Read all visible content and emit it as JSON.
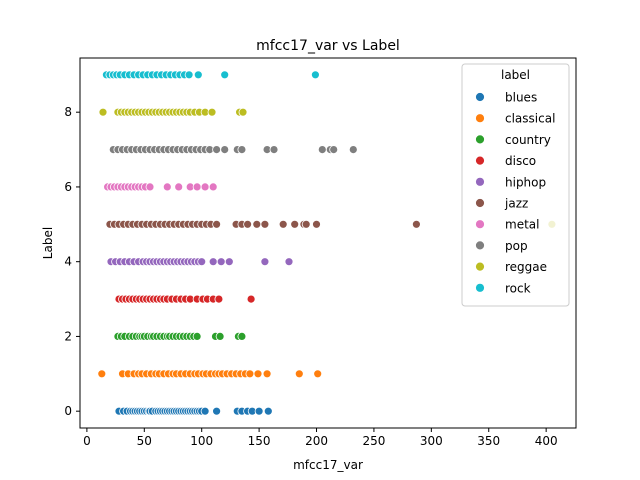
{
  "chart_data": {
    "type": "scatter",
    "title": "mfcc17_var vs Label",
    "xlabel": "mfcc17_var",
    "ylabel": "Label",
    "xlim": [
      -6,
      426
    ],
    "ylim": [
      -0.45,
      9.45
    ],
    "xticks": [
      0,
      50,
      100,
      150,
      200,
      250,
      300,
      350,
      400
    ],
    "yticks": [
      0,
      2,
      4,
      6,
      8
    ],
    "grid": false,
    "legend": {
      "title": "label",
      "position": "top-right"
    },
    "series": [
      {
        "name": "blues",
        "color": "#1f77b4",
        "y": 0,
        "x": [
          28,
          32,
          35,
          38,
          40,
          42,
          44,
          46,
          48,
          50,
          52,
          54,
          55,
          57,
          60,
          62,
          64,
          66,
          68,
          70,
          72,
          74,
          76,
          78,
          80,
          82,
          84,
          86,
          88,
          90,
          92,
          94,
          96,
          98,
          100,
          103,
          113,
          131,
          135,
          140,
          144,
          150,
          158
        ]
      },
      {
        "name": "classical",
        "color": "#ff7f0e",
        "y": 1,
        "x": [
          13,
          31,
          36,
          41,
          45,
          48,
          52,
          56,
          60,
          63,
          67,
          71,
          75,
          78,
          82,
          86,
          90,
          94,
          97,
          101,
          104,
          108,
          112,
          115,
          118,
          122,
          126,
          130,
          134,
          138,
          142,
          149,
          157,
          185,
          201
        ]
      },
      {
        "name": "country",
        "color": "#2ca02c",
        "y": 2,
        "x": [
          27,
          30,
          33,
          37,
          40,
          43,
          46,
          48,
          50,
          53,
          56,
          58,
          61,
          64,
          67,
          70,
          72,
          75,
          78,
          81,
          84,
          87,
          90,
          93,
          96,
          112,
          116,
          132,
          135
        ]
      },
      {
        "name": "disco",
        "color": "#d62728",
        "y": 3,
        "x": [
          28,
          31,
          34,
          37,
          40,
          43,
          46,
          49,
          52,
          55,
          58,
          61,
          64,
          67,
          70,
          74,
          78,
          82,
          86,
          90,
          96,
          101,
          105,
          110,
          115,
          143
        ]
      },
      {
        "name": "hiphop",
        "color": "#9467bd",
        "y": 4,
        "x": [
          21,
          25,
          29,
          33,
          37,
          41,
          45,
          49,
          52,
          55,
          58,
          61,
          64,
          67,
          70,
          73,
          76,
          79,
          82,
          85,
          88,
          91,
          94,
          97,
          100,
          110,
          117,
          124,
          155,
          176
        ]
      },
      {
        "name": "jazz",
        "color": "#8c564b",
        "y": 5,
        "x": [
          20,
          24,
          28,
          32,
          36,
          40,
          44,
          48,
          52,
          56,
          60,
          64,
          68,
          72,
          76,
          80,
          84,
          88,
          92,
          96,
          100,
          104,
          108,
          113,
          130,
          135,
          140,
          148,
          155,
          171,
          181,
          189,
          191,
          200,
          287
        ]
      },
      {
        "name": "metal",
        "color": "#e377c2",
        "y": 6,
        "x": [
          18,
          21,
          24,
          27,
          30,
          33,
          36,
          39,
          42,
          45,
          48,
          51,
          55,
          70,
          80,
          90,
          96,
          103,
          110
        ]
      },
      {
        "name": "pop",
        "color": "#7f7f7f",
        "y": 7,
        "x": [
          23,
          27,
          31,
          35,
          39,
          43,
          47,
          51,
          55,
          59,
          63,
          67,
          71,
          75,
          79,
          83,
          87,
          91,
          95,
          99,
          103,
          107,
          113,
          120,
          131,
          135,
          157,
          163,
          205,
          212,
          215,
          232
        ]
      },
      {
        "name": "reggae",
        "color": "#bcbd22",
        "y": 8,
        "x": [
          14,
          27,
          30,
          33,
          36,
          39,
          42,
          45,
          48,
          51,
          54,
          57,
          60,
          63,
          66,
          69,
          72,
          75,
          78,
          81,
          84,
          87,
          90,
          94,
          98,
          103,
          109,
          133,
          136
        ]
      },
      {
        "name": "rock",
        "color": "#17becf",
        "y": 9,
        "x": [
          17,
          20,
          23,
          26,
          29,
          33,
          37,
          41,
          45,
          49,
          53,
          57,
          61,
          65,
          69,
          73,
          77,
          81,
          85,
          89,
          97,
          120,
          199
        ]
      },
      {
        "name": "",
        "color": "#bcbd22",
        "y": 5,
        "x": [
          405
        ]
      }
    ]
  }
}
